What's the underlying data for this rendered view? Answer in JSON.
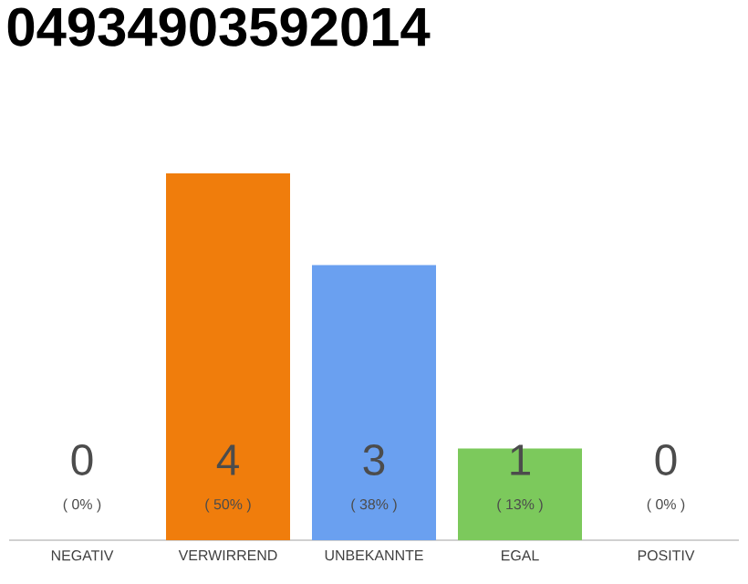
{
  "chart_data": {
    "type": "bar",
    "title": "04934903592014",
    "categories": [
      "NEGATIV",
      "VERWIRREND",
      "UNBEKANNTE",
      "EGAL",
      "POSITIV"
    ],
    "values": [
      0,
      4,
      3,
      1,
      0
    ],
    "colors": [
      "#cccccc",
      "#f07d0c",
      "#6aa0f0",
      "#7cc95c",
      "#cccccc"
    ],
    "ylim": [
      0,
      4
    ],
    "data_labels": true,
    "annotations": [
      "( 0% )",
      "( 50% )",
      "( 38% )",
      "( 13% )",
      "( 0% )"
    ]
  }
}
